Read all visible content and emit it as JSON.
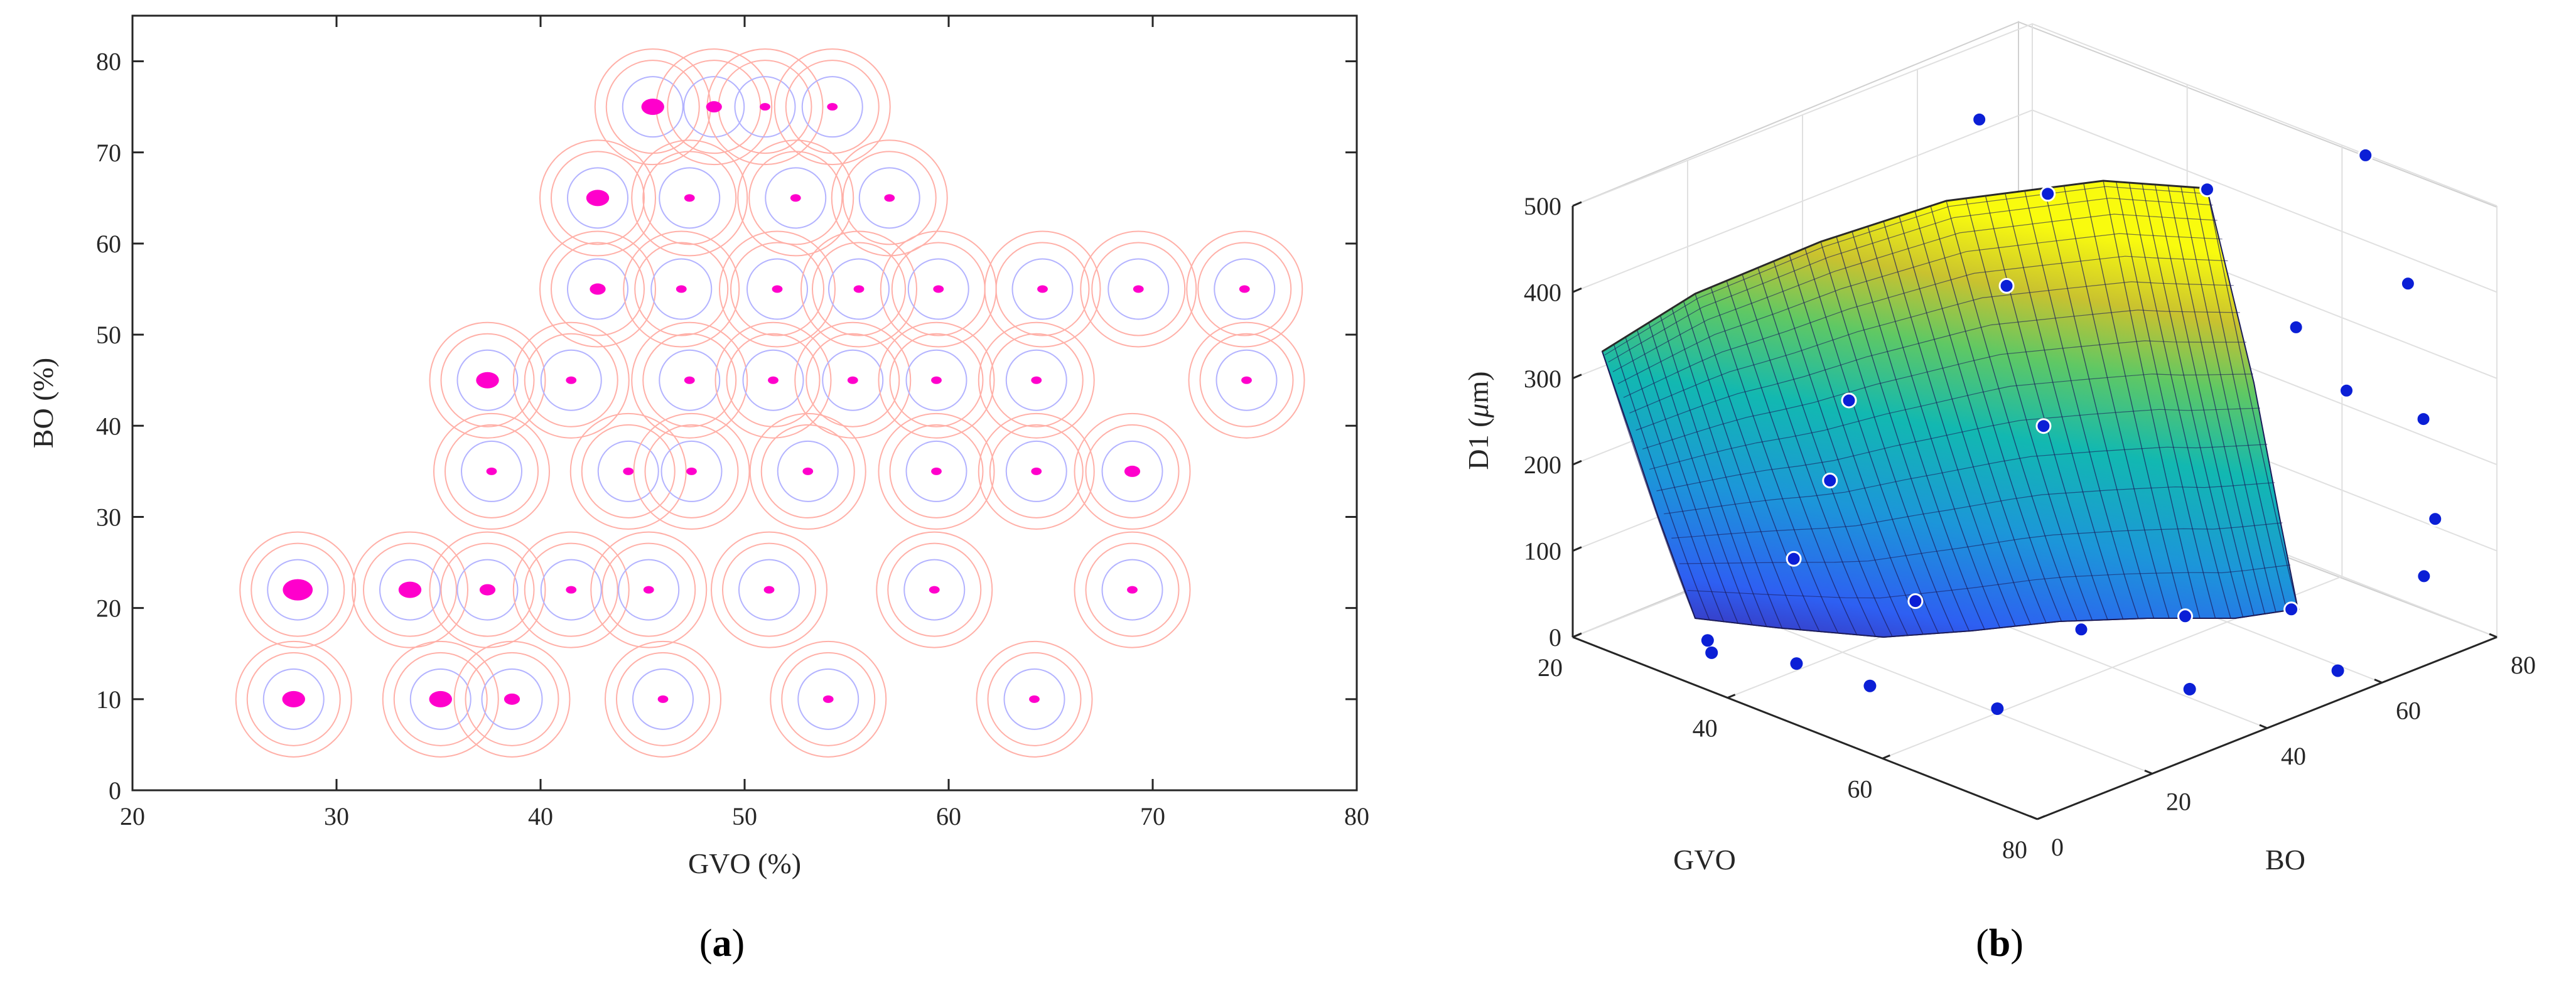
{
  "chart_data": [
    {
      "panel": "a",
      "type": "scatter",
      "caption": {
        "open": "(",
        "letter": "a",
        "close": ")"
      },
      "title": "",
      "xlabel": "GVO (%)",
      "ylabel": "BO (%)",
      "xlim": [
        20,
        80
      ],
      "ylim": [
        0,
        85
      ],
      "xticks": [
        20,
        30,
        40,
        50,
        60,
        70,
        80
      ],
      "yticks": [
        0,
        10,
        20,
        30,
        40,
        50,
        60,
        70,
        80
      ],
      "ring_colors": {
        "inner": "#b3b3ff",
        "outer": "#ffb0a8"
      },
      "point_color": "#ff00cc",
      "points": [
        {
          "x": 45.5,
          "y": 75,
          "cluster": "large"
        },
        {
          "x": 48.5,
          "y": 75,
          "cluster": "medium"
        },
        {
          "x": 51.0,
          "y": 75,
          "cluster": "small"
        },
        {
          "x": 54.3,
          "y": 75,
          "cluster": "small"
        },
        {
          "x": 42.8,
          "y": 65,
          "cluster": "large"
        },
        {
          "x": 47.3,
          "y": 65,
          "cluster": "small"
        },
        {
          "x": 52.5,
          "y": 65,
          "cluster": "small"
        },
        {
          "x": 57.1,
          "y": 65,
          "cluster": "small"
        },
        {
          "x": 42.8,
          "y": 55,
          "cluster": "medium"
        },
        {
          "x": 46.9,
          "y": 55,
          "cluster": "small"
        },
        {
          "x": 51.6,
          "y": 55,
          "cluster": "small"
        },
        {
          "x": 55.6,
          "y": 55,
          "cluster": "small"
        },
        {
          "x": 59.5,
          "y": 55,
          "cluster": "small"
        },
        {
          "x": 64.6,
          "y": 55,
          "cluster": "small"
        },
        {
          "x": 69.3,
          "y": 55,
          "cluster": "small"
        },
        {
          "x": 74.5,
          "y": 55,
          "cluster": "small"
        },
        {
          "x": 37.4,
          "y": 45,
          "cluster": "large"
        },
        {
          "x": 41.5,
          "y": 45,
          "cluster": "small"
        },
        {
          "x": 47.3,
          "y": 45,
          "cluster": "small"
        },
        {
          "x": 51.4,
          "y": 45,
          "cluster": "small"
        },
        {
          "x": 55.3,
          "y": 45,
          "cluster": "small"
        },
        {
          "x": 59.4,
          "y": 45,
          "cluster": "small"
        },
        {
          "x": 64.3,
          "y": 45,
          "cluster": "small"
        },
        {
          "x": 74.6,
          "y": 45,
          "cluster": "small"
        },
        {
          "x": 37.6,
          "y": 35,
          "cluster": "small"
        },
        {
          "x": 44.3,
          "y": 35,
          "cluster": "small"
        },
        {
          "x": 47.4,
          "y": 35,
          "cluster": "small"
        },
        {
          "x": 53.1,
          "y": 35,
          "cluster": "small"
        },
        {
          "x": 59.4,
          "y": 35,
          "cluster": "small"
        },
        {
          "x": 64.3,
          "y": 35,
          "cluster": "small"
        },
        {
          "x": 69.0,
          "y": 35,
          "cluster": "medium"
        },
        {
          "x": 28.1,
          "y": 22,
          "cluster": "xlarge"
        },
        {
          "x": 33.6,
          "y": 22,
          "cluster": "large"
        },
        {
          "x": 37.4,
          "y": 22,
          "cluster": "medium"
        },
        {
          "x": 41.5,
          "y": 22,
          "cluster": "small"
        },
        {
          "x": 45.3,
          "y": 22,
          "cluster": "small"
        },
        {
          "x": 51.2,
          "y": 22,
          "cluster": "small"
        },
        {
          "x": 59.3,
          "y": 22,
          "cluster": "small"
        },
        {
          "x": 69.0,
          "y": 22,
          "cluster": "small"
        },
        {
          "x": 27.9,
          "y": 10,
          "cluster": "large"
        },
        {
          "x": 35.1,
          "y": 10,
          "cluster": "large"
        },
        {
          "x": 38.6,
          "y": 10,
          "cluster": "medium"
        },
        {
          "x": 46.0,
          "y": 10,
          "cluster": "small"
        },
        {
          "x": 54.1,
          "y": 10,
          "cluster": "small"
        },
        {
          "x": 64.2,
          "y": 10,
          "cluster": "small"
        }
      ]
    },
    {
      "panel": "b",
      "type": "surface3d",
      "caption": {
        "open": "(",
        "letter": "b",
        "close": ")"
      },
      "title": "",
      "xlabel": "GVO",
      "ylabel": "BO",
      "zlabel_main": "D1 (",
      "zlabel_mu": "μ",
      "zlabel_unit": "m)",
      "xlim": [
        20,
        80
      ],
      "ylim": [
        0,
        80
      ],
      "zlim": [
        0,
        500
      ],
      "xticks": [
        20,
        40,
        60,
        80
      ],
      "yticks": [
        0,
        20,
        40,
        60,
        80
      ],
      "zticks": [
        0,
        100,
        200,
        300,
        400,
        500
      ],
      "colormap": "parula",
      "colormap_colors": [
        "#3e26a8",
        "#2e5ff2",
        "#1c96d9",
        "#12b8b1",
        "#5fc864",
        "#c9c22f",
        "#f9fb0e"
      ],
      "point_color": "#0b1fd6",
      "points": [
        {
          "gvo": 22,
          "bo": 80,
          "d1": 310,
          "side": "above"
        },
        {
          "gvo": 28,
          "bo": 60,
          "d1": 470,
          "side": "above"
        },
        {
          "gvo": 33,
          "bo": 58,
          "d1": 300,
          "side": "above"
        },
        {
          "gvo": 26,
          "bo": 40,
          "d1": 190,
          "side": "above"
        },
        {
          "gvo": 28,
          "bo": 34,
          "d1": 120,
          "side": "above"
        },
        {
          "gvo": 40,
          "bo": 55,
          "d1": 170,
          "side": "above"
        },
        {
          "gvo": 30,
          "bo": 25,
          "d1": 60,
          "side": "above"
        },
        {
          "gvo": 42,
          "bo": 30,
          "d1": 40,
          "side": "above"
        },
        {
          "gvo": 50,
          "bo": 70,
          "d1": 440,
          "side": "above"
        },
        {
          "gvo": 60,
          "bo": 72,
          "d1": 310,
          "side": "above"
        },
        {
          "gvo": 68,
          "bo": 70,
          "d1": 270,
          "side": "above"
        },
        {
          "gvo": 66,
          "bo": 76,
          "d1": 520,
          "side": "above"
        },
        {
          "gvo": 70,
          "bo": 78,
          "d1": 380,
          "side": "above"
        },
        {
          "gvo": 72,
          "bo": 78,
          "d1": 230,
          "side": "above"
        },
        {
          "gvo": 75,
          "bo": 76,
          "d1": 130,
          "side": "above"
        },
        {
          "gvo": 78,
          "bo": 70,
          "d1": 90,
          "side": "above"
        },
        {
          "gvo": 56,
          "bo": 40,
          "d1": 30,
          "side": "above"
        },
        {
          "gvo": 62,
          "bo": 50,
          "d1": 40,
          "side": "above"
        },
        {
          "gvo": 72,
          "bo": 55,
          "d1": 70,
          "side": "above"
        },
        {
          "gvo": 30,
          "bo": 10,
          "d1": 5,
          "side": "below"
        },
        {
          "gvo": 32,
          "bo": 8,
          "d1": 3,
          "side": "below"
        },
        {
          "gvo": 40,
          "bo": 12,
          "d1": 8,
          "side": "below"
        },
        {
          "gvo": 48,
          "bo": 14,
          "d1": 5,
          "side": "below"
        },
        {
          "gvo": 60,
          "bo": 20,
          "d1": 5,
          "side": "below"
        },
        {
          "gvo": 70,
          "bo": 40,
          "d1": 10,
          "side": "below"
        },
        {
          "gvo": 78,
          "bo": 55,
          "d1": 20,
          "side": "below"
        }
      ]
    }
  ]
}
